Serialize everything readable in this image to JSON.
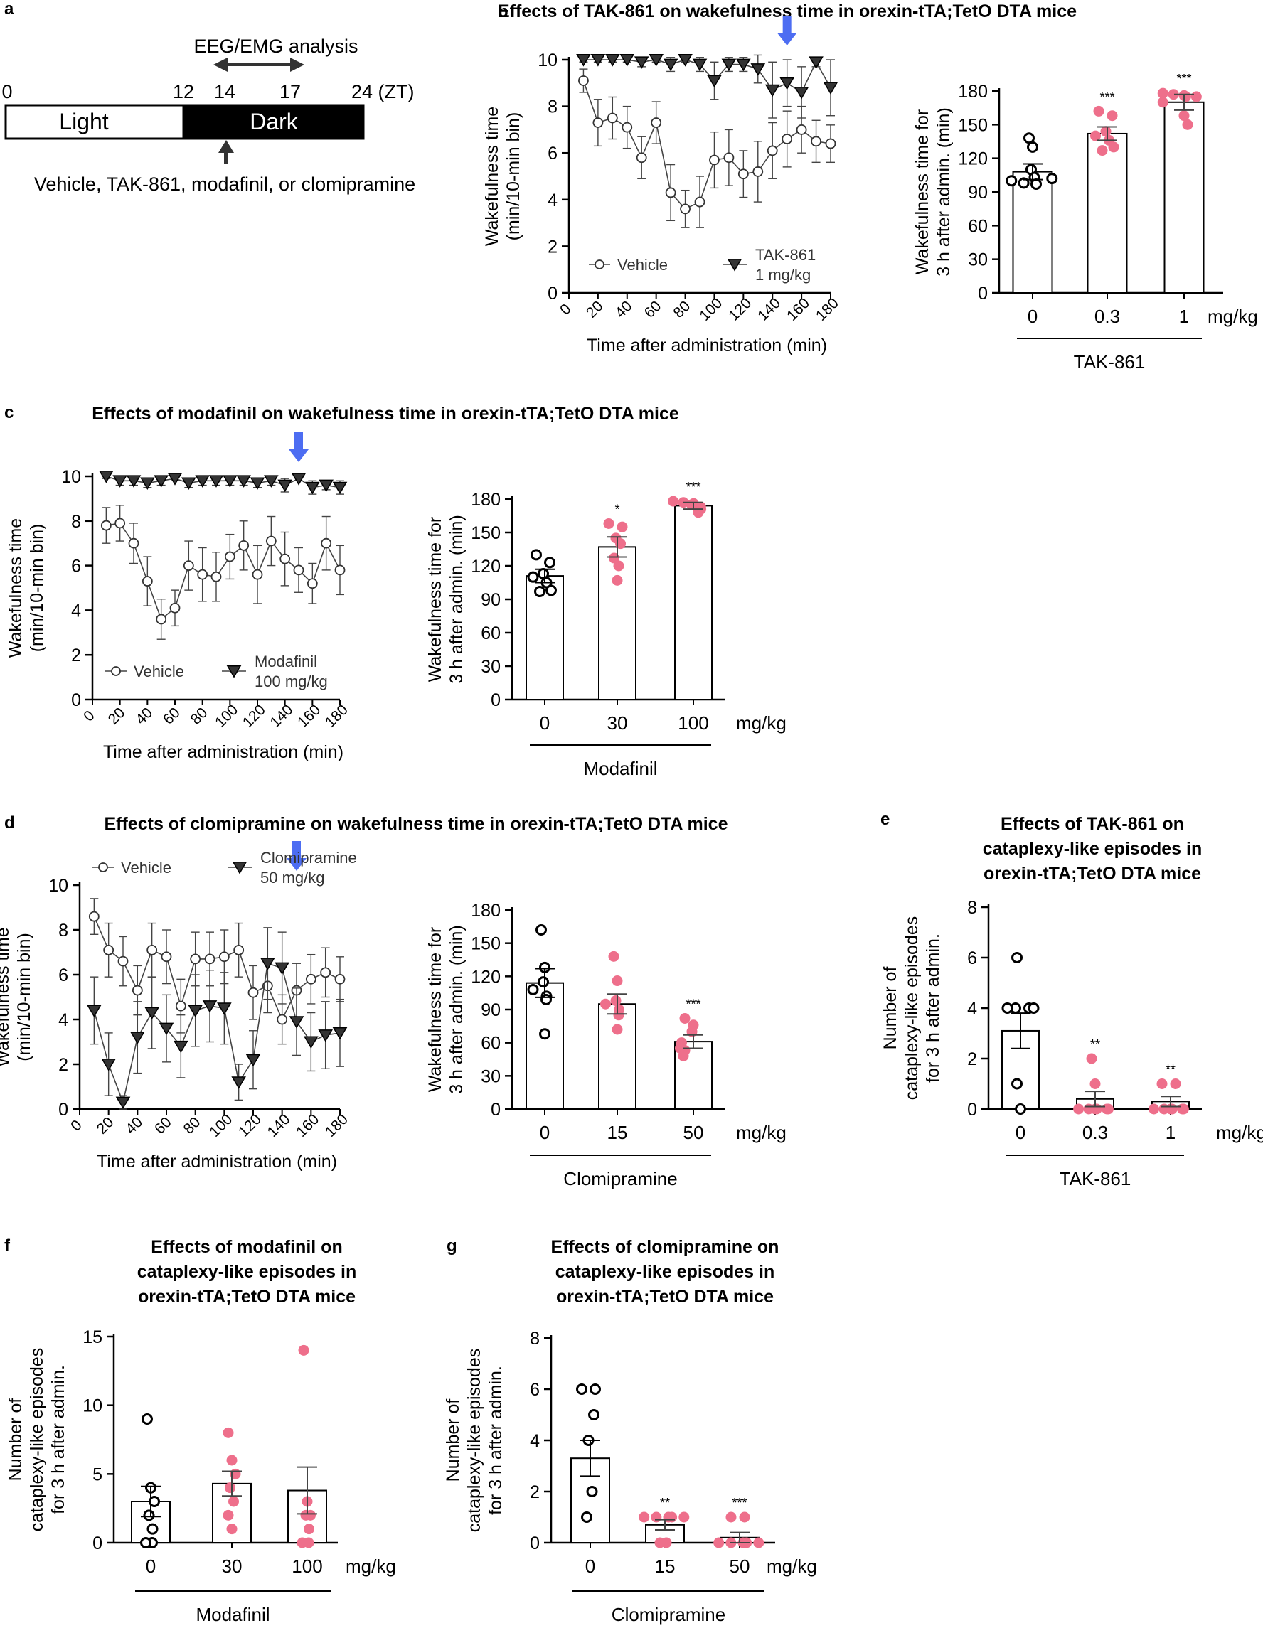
{
  "colors": {
    "treated": "#ee6f8b",
    "vehicle": "#000000",
    "arrow": "#4d6df2",
    "black": "#000000"
  },
  "panels": {
    "a": {
      "letter": "a",
      "analysis_label": "EEG/EMG analysis",
      "ticks": [
        "0",
        "12",
        "14",
        "17",
        "24 (ZT)"
      ],
      "light_label": "Light",
      "dark_label": "Dark",
      "drug_label": "Vehicle, TAK-861, modafinil, or clomipramine"
    },
    "b": {
      "letter": "b",
      "title": "Effects of TAK-861 on wakefulness time in orexin-tTA;TetO DTA mice"
    },
    "c": {
      "letter": "c",
      "title": "Effects of modafinil on wakefulness time in orexin-tTA;TetO DTA mice"
    },
    "d": {
      "letter": "d",
      "title": "Effects of clomipramine on wakefulness time in orexin-tTA;TetO DTA mice"
    },
    "e": {
      "letter": "e",
      "title": [
        "Effects of TAK-861 on",
        "cataplexy-like episodes in",
        "orexin-tTA;TetO DTA mice"
      ]
    },
    "f": {
      "letter": "f",
      "title": [
        "Effects of modafinil on",
        "cataplexy-like episodes in",
        "orexin-tTA;TetO DTA mice"
      ]
    },
    "g": {
      "letter": "g",
      "title": [
        "Effects of clomipramine on",
        "cataplexy-like episodes in",
        "orexin-tTA;TetO DTA mice"
      ]
    }
  },
  "chart_data": [
    {
      "id": "b_line",
      "type": "line",
      "xlabel": "Time after administration (min)",
      "ylabel": [
        "Wakefulness time",
        "(min/10-min bin)"
      ],
      "xlim": [
        0,
        180
      ],
      "ylim": [
        0,
        10
      ],
      "xticks": [
        0,
        20,
        40,
        60,
        80,
        100,
        120,
        140,
        160,
        180
      ],
      "yticks": [
        0,
        2,
        4,
        6,
        8,
        10
      ],
      "arrow_at_x": 150,
      "x": [
        10,
        20,
        30,
        40,
        50,
        60,
        70,
        80,
        90,
        100,
        110,
        120,
        130,
        140,
        150,
        160,
        170,
        180
      ],
      "series": [
        {
          "name": "Vehicle",
          "marker": "circle",
          "values": [
            9.1,
            7.3,
            7.5,
            7.1,
            5.8,
            7.3,
            4.3,
            3.6,
            3.9,
            5.7,
            5.8,
            5.1,
            5.2,
            6.1,
            6.6,
            7.0,
            6.5,
            6.4
          ],
          "errors": [
            0.5,
            1.0,
            0.9,
            0.9,
            0.9,
            0.9,
            1.2,
            0.8,
            1.1,
            1.2,
            1.2,
            1.0,
            1.3,
            1.2,
            1.2,
            1.0,
            0.9,
            0.8
          ]
        },
        {
          "name": "TAK-861 1 mg/kg",
          "legend_lines": [
            "TAK-861",
            "1 mg/kg"
          ],
          "marker": "triangle",
          "values": [
            10.0,
            10.0,
            10.0,
            10.0,
            9.9,
            10.0,
            9.8,
            10.0,
            9.8,
            9.1,
            9.8,
            9.8,
            9.6,
            8.7,
            9.0,
            8.6,
            9.9,
            8.8
          ],
          "errors": [
            0.1,
            0.1,
            0.1,
            0.1,
            0.2,
            0.1,
            0.3,
            0.1,
            0.3,
            0.8,
            0.3,
            0.3,
            0.6,
            1.2,
            1.0,
            1.1,
            0.2,
            1.2
          ]
        }
      ]
    },
    {
      "id": "b_bar",
      "type": "bar",
      "ylabel": [
        "Wakefulness time for",
        "3 h after admin. (min)"
      ],
      "ylim": [
        0,
        180
      ],
      "yticks": [
        0,
        30,
        60,
        90,
        120,
        150,
        180
      ],
      "categories": [
        "0",
        "0.3",
        "1"
      ],
      "unit": "mg/kg",
      "group_label": "TAK-861",
      "values": [
        108,
        142,
        170
      ],
      "errors": [
        7,
        6,
        7
      ],
      "significance": [
        "",
        "***",
        "***"
      ],
      "points": [
        [
          138,
          130,
          110,
          103,
          102,
          100,
          98,
          97
        ],
        [
          162,
          158,
          144,
          140,
          136,
          130,
          127
        ],
        [
          178,
          177,
          176,
          175,
          175,
          170,
          158,
          150
        ]
      ]
    },
    {
      "id": "c_line",
      "type": "line",
      "xlabel": "Time after administration (min)",
      "ylabel": [
        "Wakefulness time",
        "(min/10-min bin)"
      ],
      "xlim": [
        0,
        180
      ],
      "ylim": [
        0,
        10
      ],
      "xticks": [
        0,
        20,
        40,
        60,
        80,
        100,
        120,
        140,
        160,
        180
      ],
      "yticks": [
        0,
        2,
        4,
        6,
        8,
        10
      ],
      "arrow_at_x": 150,
      "x": [
        10,
        20,
        30,
        40,
        50,
        60,
        70,
        80,
        90,
        100,
        110,
        120,
        130,
        140,
        150,
        160,
        170,
        180
      ],
      "series": [
        {
          "name": "Vehicle",
          "marker": "circle",
          "values": [
            7.8,
            7.9,
            7.0,
            5.3,
            3.6,
            4.1,
            6.0,
            5.6,
            5.5,
            6.4,
            6.9,
            5.6,
            7.1,
            6.3,
            5.8,
            5.2,
            7.0,
            5.8
          ],
          "errors": [
            0.8,
            0.8,
            0.9,
            1.1,
            0.9,
            0.8,
            1.1,
            1.2,
            1.1,
            1.0,
            1.1,
            1.3,
            1.1,
            1.2,
            1.0,
            0.9,
            1.2,
            1.1
          ]
        },
        {
          "name": "Modafinil 100 mg/kg",
          "legend_lines": [
            "Modafinil",
            "100 mg/kg"
          ],
          "marker": "triangle",
          "values": [
            10.0,
            9.8,
            9.8,
            9.7,
            9.8,
            9.9,
            9.7,
            9.8,
            9.8,
            9.8,
            9.8,
            9.7,
            9.8,
            9.6,
            9.9,
            9.5,
            9.6,
            9.5
          ],
          "errors": [
            0.1,
            0.2,
            0.2,
            0.2,
            0.2,
            0.1,
            0.2,
            0.2,
            0.2,
            0.2,
            0.2,
            0.2,
            0.2,
            0.3,
            0.1,
            0.3,
            0.2,
            0.3
          ]
        }
      ]
    },
    {
      "id": "c_bar",
      "type": "bar",
      "ylabel": [
        "Wakefulness time for",
        "3 h after admin. (min)"
      ],
      "ylim": [
        0,
        180
      ],
      "yticks": [
        0,
        30,
        60,
        90,
        120,
        150,
        180
      ],
      "categories": [
        "0",
        "30",
        "100"
      ],
      "unit": "mg/kg",
      "group_label": "Modafinil",
      "values": [
        111,
        137,
        174
      ],
      "errors": [
        6,
        9,
        3
      ],
      "significance": [
        "",
        "*",
        "***"
      ],
      "points": [
        [
          130,
          123,
          113,
          110,
          105,
          98,
          97
        ],
        [
          158,
          155,
          145,
          140,
          127,
          120,
          107
        ],
        [
          178,
          177,
          176,
          175,
          173,
          171,
          168
        ]
      ]
    },
    {
      "id": "d_line",
      "type": "line",
      "xlabel": "Time after administration (min)",
      "ylabel": [
        "Wakefulness time",
        "(min/10-min bin)"
      ],
      "xlim": [
        0,
        180
      ],
      "ylim": [
        0,
        10
      ],
      "xticks": [
        0,
        20,
        40,
        60,
        80,
        100,
        120,
        140,
        160,
        180
      ],
      "yticks": [
        0,
        2,
        4,
        6,
        8,
        10
      ],
      "arrow_at_x": 150,
      "x": [
        10,
        20,
        30,
        40,
        50,
        60,
        70,
        80,
        90,
        100,
        110,
        120,
        130,
        140,
        150,
        160,
        170,
        180
      ],
      "series": [
        {
          "name": "Vehicle",
          "marker": "circle",
          "values": [
            8.6,
            7.1,
            6.6,
            5.3,
            7.1,
            6.8,
            4.6,
            6.7,
            6.7,
            6.8,
            7.1,
            5.2,
            5.5,
            4.0,
            5.3,
            5.8,
            6.1,
            5.8
          ],
          "errors": [
            0.8,
            1.2,
            1.1,
            1.1,
            1.2,
            1.2,
            1.2,
            1.2,
            1.2,
            1.2,
            1.2,
            1.2,
            1.2,
            1.1,
            1.2,
            1.1,
            1.1,
            1.0
          ]
        },
        {
          "name": "Clomipramine 50 mg/kg",
          "legend_lines": [
            "Clomipramine",
            "50 mg/kg"
          ],
          "marker": "triangle",
          "values": [
            4.4,
            2.0,
            0.3,
            3.2,
            4.3,
            3.6,
            2.8,
            4.4,
            4.6,
            4.5,
            1.2,
            2.2,
            6.5,
            6.3,
            3.9,
            3.0,
            3.3,
            3.4
          ],
          "errors": [
            1.5,
            1.4,
            0.3,
            1.6,
            1.6,
            1.5,
            1.4,
            1.6,
            1.6,
            1.6,
            0.8,
            1.3,
            1.6,
            1.6,
            1.5,
            1.3,
            1.5,
            1.5
          ]
        }
      ]
    },
    {
      "id": "d_bar",
      "type": "bar",
      "ylabel": [
        "Wakefulness time for",
        "3 h after admin. (min)"
      ],
      "ylim": [
        0,
        180
      ],
      "yticks": [
        0,
        30,
        60,
        90,
        120,
        150,
        180
      ],
      "categories": [
        "0",
        "15",
        "50"
      ],
      "unit": "mg/kg",
      "group_label": "Clomipramine",
      "values": [
        114,
        95,
        61
      ],
      "errors": [
        13,
        9,
        6
      ],
      "significance": [
        "",
        "",
        "***"
      ],
      "points": [
        [
          162,
          128,
          115,
          108,
          102,
          99,
          68
        ],
        [
          138,
          116,
          98,
          95,
          90,
          85,
          72
        ],
        [
          82,
          76,
          70,
          60,
          55,
          53,
          48
        ]
      ]
    },
    {
      "id": "e_bar",
      "type": "bar",
      "ylabel": [
        "Number of",
        "cataplexy-like episodes",
        "for 3 h after admin."
      ],
      "ylim": [
        0,
        8
      ],
      "yticks": [
        0,
        2,
        4,
        6,
        8
      ],
      "categories": [
        "0",
        "0.3",
        "1"
      ],
      "unit": "mg/kg",
      "group_label": "TAK-861",
      "values": [
        3.1,
        0.4,
        0.3
      ],
      "errors": [
        0.7,
        0.3,
        0.2
      ],
      "significance": [
        "",
        "**",
        "**"
      ],
      "points": [
        [
          6,
          4,
          4,
          4,
          4,
          1,
          0
        ],
        [
          2,
          1,
          0,
          0,
          0,
          0,
          0,
          0
        ],
        [
          1,
          1,
          0,
          0,
          0,
          0,
          0,
          0
        ]
      ]
    },
    {
      "id": "f_bar",
      "type": "bar",
      "ylabel": [
        "Number of",
        "cataplexy-like episodes",
        "for 3 h after admin."
      ],
      "ylim": [
        0,
        15
      ],
      "yticks": [
        0,
        5,
        10,
        15
      ],
      "categories": [
        "0",
        "30",
        "100"
      ],
      "unit": "mg/kg",
      "group_label": "Modafinil",
      "values": [
        3.0,
        4.3,
        3.8
      ],
      "errors": [
        1.1,
        0.9,
        1.7
      ],
      "significance": [
        "",
        "",
        ""
      ],
      "points": [
        [
          9,
          4,
          3,
          2,
          1,
          0,
          0
        ],
        [
          8,
          6,
          5,
          4,
          3,
          2,
          1
        ],
        [
          14,
          3,
          2,
          2,
          1,
          0,
          0
        ]
      ]
    },
    {
      "id": "g_bar",
      "type": "bar",
      "ylabel": [
        "Number of",
        "cataplexy-like episodes",
        "for 3 h after admin."
      ],
      "ylim": [
        0,
        8
      ],
      "yticks": [
        0,
        2,
        4,
        6,
        8
      ],
      "categories": [
        "0",
        "15",
        "50"
      ],
      "unit": "mg/kg",
      "group_label": "Clomipramine",
      "values": [
        3.3,
        0.7,
        0.2
      ],
      "errors": [
        0.7,
        0.2,
        0.2
      ],
      "significance": [
        "",
        "**",
        "***"
      ],
      "points": [
        [
          6,
          6,
          5,
          4,
          2,
          1
        ],
        [
          1,
          1,
          1,
          1,
          1,
          0,
          0
        ],
        [
          1,
          1,
          0,
          0,
          0,
          0,
          0
        ]
      ]
    }
  ]
}
